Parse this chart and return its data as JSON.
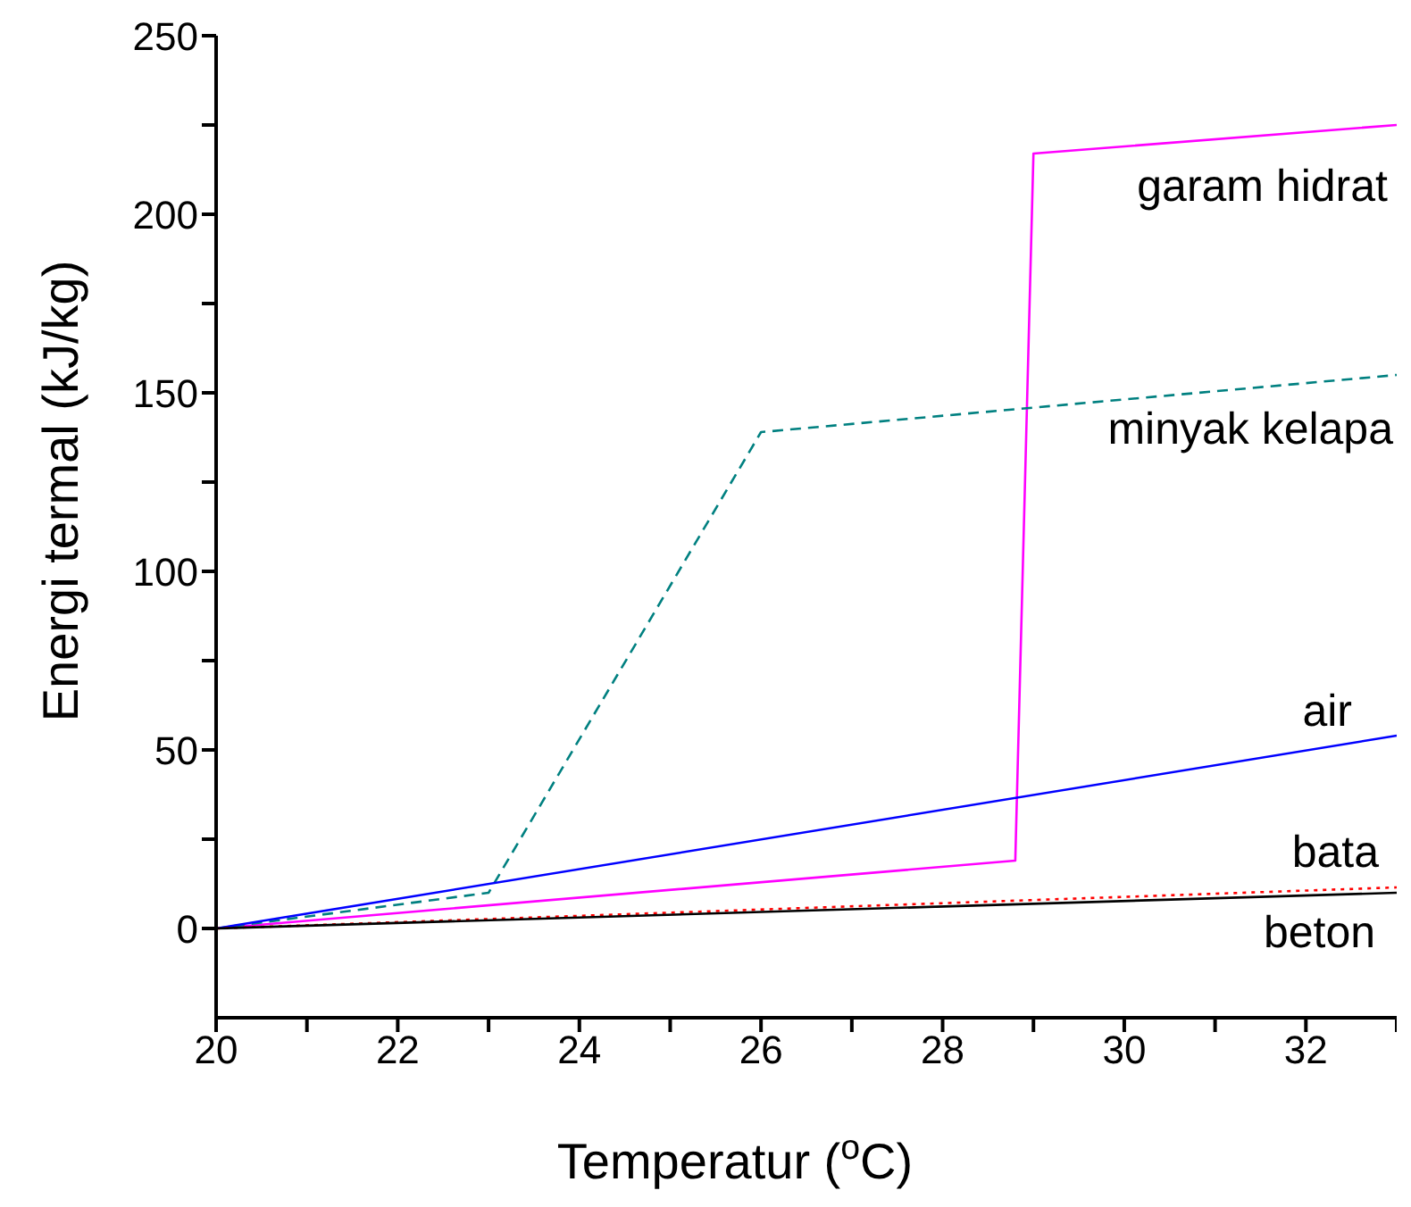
{
  "chart_data": {
    "type": "line",
    "xlabel": "Temperatur ($^{o}$C)",
    "ylabel": "Energi termal (kJ/kg)",
    "xlim": [
      20,
      33
    ],
    "ylim": [
      -25,
      250
    ],
    "xticks": [
      20,
      {
        "value": 21,
        "label": null
      },
      22,
      {
        "value": 23,
        "label": null
      },
      24,
      {
        "value": 25,
        "label": null
      },
      26,
      {
        "value": 27,
        "label": null
      },
      28,
      {
        "value": 29,
        "label": null
      },
      30,
      {
        "value": 31,
        "label": null
      },
      32,
      {
        "value": 33,
        "label": null
      }
    ],
    "yticks": [
      0,
      {
        "value": 25,
        "label": null
      },
      50,
      {
        "value": 75,
        "label": null
      },
      100,
      {
        "value": 125,
        "label": null
      },
      150,
      {
        "value": 175,
        "label": null
      },
      200,
      {
        "value": 225,
        "label": null
      },
      250
    ],
    "grid": false,
    "legend": false,
    "marker": "none",
    "series": [
      {
        "name": "garam hidrat",
        "color": "#ff00ff",
        "line_style": "solid",
        "x": [
          20,
          28.8,
          29,
          33
        ],
        "values": [
          0,
          19,
          217,
          225
        ]
      },
      {
        "name": "minyak kelapa",
        "color": "#008080",
        "line_style": "dashed",
        "x": [
          20,
          23,
          26,
          33
        ],
        "values": [
          0,
          10,
          139,
          155
        ]
      },
      {
        "name": "air",
        "color": "#0000ff",
        "line_style": "solid",
        "x": [
          20,
          33
        ],
        "values": [
          0,
          54
        ]
      },
      {
        "name": "bata",
        "color": "#ff0000",
        "line_style": "dotted",
        "x": [
          20,
          33
        ],
        "values": [
          0,
          11.5
        ]
      },
      {
        "name": "beton",
        "color": "#000000",
        "line_style": "solid",
        "x": [
          20,
          33
        ],
        "values": [
          0,
          10
        ]
      }
    ]
  }
}
